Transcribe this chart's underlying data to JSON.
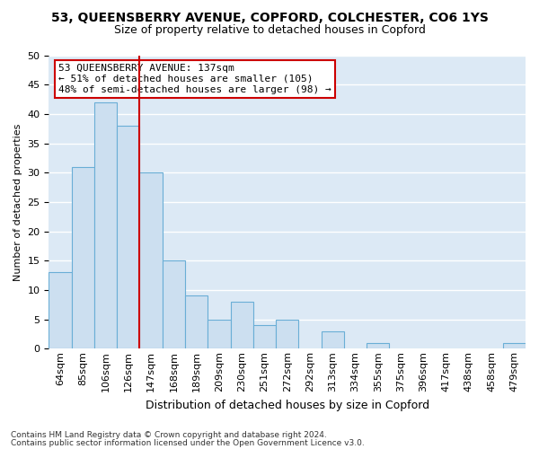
{
  "title_line1": "53, QUEENSBERRY AVENUE, COPFORD, COLCHESTER, CO6 1YS",
  "title_line2": "Size of property relative to detached houses in Copford",
  "xlabel": "Distribution of detached houses by size in Copford",
  "ylabel": "Number of detached properties",
  "categories": [
    "64sqm",
    "85sqm",
    "106sqm",
    "126sqm",
    "147sqm",
    "168sqm",
    "189sqm",
    "209sqm",
    "230sqm",
    "251sqm",
    "272sqm",
    "292sqm",
    "313sqm",
    "334sqm",
    "355sqm",
    "375sqm",
    "396sqm",
    "417sqm",
    "438sqm",
    "458sqm",
    "479sqm"
  ],
  "values": [
    13,
    31,
    42,
    38,
    30,
    15,
    9,
    5,
    8,
    4,
    5,
    0,
    3,
    0,
    1,
    0,
    0,
    0,
    0,
    0,
    1
  ],
  "bar_color": "#ccdff0",
  "bar_edge_color": "#6aaed6",
  "annotation_line1": "53 QUEENSBERRY AVENUE: 137sqm",
  "annotation_line2": "← 51% of detached houses are smaller (105)",
  "annotation_line3": "48% of semi-detached houses are larger (98) →",
  "red_line_index": 3.5,
  "ylim": [
    0,
    50
  ],
  "yticks": [
    0,
    5,
    10,
    15,
    20,
    25,
    30,
    35,
    40,
    45,
    50
  ],
  "footer_line1": "Contains HM Land Registry data © Crown copyright and database right 2024.",
  "footer_line2": "Contains public sector information licensed under the Open Government Licence v3.0.",
  "box_facecolor": "#ffffff",
  "box_edgecolor": "#cc0000",
  "fig_facecolor": "#ffffff",
  "plot_facecolor": "#dce9f5",
  "grid_color": "#ffffff",
  "red_line_color": "#cc0000",
  "title1_fontsize": 10,
  "title2_fontsize": 9,
  "ylabel_fontsize": 8,
  "xlabel_fontsize": 9,
  "tick_fontsize": 8,
  "annot_fontsize": 8,
  "footer_fontsize": 6.5
}
